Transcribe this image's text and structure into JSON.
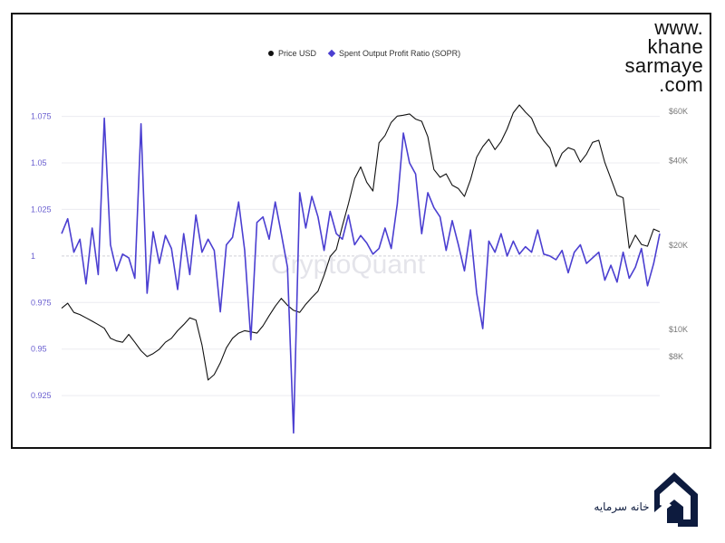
{
  "brand": {
    "url_lines": [
      "www.",
      "khane",
      "sarmaye",
      ".com"
    ],
    "logo_text": "خانه سرمایه"
  },
  "watermark": "CryptoQuant",
  "chart_data": {
    "type": "line",
    "legend": [
      {
        "name": "Price USD",
        "color": "#111111",
        "marker": "circle"
      },
      {
        "name": "Spent Output Profit Ratio (SOPR)",
        "color": "#4b3fd1",
        "marker": "diamond"
      }
    ],
    "left_axis": {
      "ticks": [
        1.075,
        1.05,
        1.025,
        1,
        0.975,
        0.95,
        0.925
      ],
      "labels": [
        "1.075",
        "1.05",
        "1.025",
        "1",
        "0.975",
        "0.95",
        "0.925"
      ],
      "range": [
        0.91,
        1.085
      ],
      "color": "#6a5fd0"
    },
    "right_axis": {
      "ticks": [
        60000,
        40000,
        20000,
        10000,
        8000
      ],
      "labels": [
        "$60K",
        "$40K",
        "$20K",
        "$10K",
        "$8K"
      ],
      "scale": "log",
      "color": "#777777"
    },
    "series": [
      {
        "name": "Price USD",
        "color": "#111111",
        "axis": "right",
        "values": [
          11900,
          12400,
          11500,
          11300,
          11000,
          10700,
          10400,
          10100,
          9300,
          9100,
          9000,
          9600,
          9000,
          8400,
          8000,
          8200,
          8500,
          9000,
          9300,
          9900,
          10400,
          11000,
          10800,
          8800,
          6600,
          6900,
          7600,
          8600,
          9300,
          9700,
          9900,
          9800,
          9700,
          10300,
          11200,
          12100,
          12900,
          12200,
          11700,
          11500,
          12300,
          13000,
          13700,
          15600,
          18200,
          19300,
          23400,
          28100,
          34500,
          38000,
          33500,
          31200,
          46300,
          49200,
          54800,
          57700,
          58100,
          58700,
          56300,
          55300,
          48700,
          37200,
          34900,
          35900,
          32700,
          31800,
          29800,
          34200,
          41200,
          44900,
          47700,
          43800,
          46800,
          51900,
          59300,
          63200,
          59600,
          56700,
          50400,
          47100,
          44400,
          38100,
          42500,
          44500,
          43700,
          39500,
          42200,
          46500,
          47300,
          39400,
          34500,
          30100,
          29500,
          19500,
          21700,
          20100,
          19800,
          22800,
          22300
        ]
      },
      {
        "name": "Spent Output Profit Ratio (SOPR)",
        "color": "#4b3fd1",
        "axis": "left",
        "values": [
          1.012,
          1.02,
          1.002,
          1.009,
          0.985,
          1.015,
          0.99,
          1.074,
          1.006,
          0.992,
          1.001,
          0.999,
          0.988,
          1.071,
          0.98,
          1.013,
          0.996,
          1.011,
          1.004,
          0.982,
          1.012,
          0.99,
          1.022,
          1.002,
          1.009,
          1.003,
          0.97,
          1.006,
          1.01,
          1.029,
          1.003,
          0.955,
          1.018,
          1.021,
          1.009,
          1.029,
          1.012,
          0.994,
          0.905,
          1.034,
          1.015,
          1.032,
          1.021,
          1.003,
          1.024,
          1.012,
          1.009,
          1.022,
          1.006,
          1.011,
          1.007,
          1.001,
          1.004,
          1.015,
          1.004,
          1.028,
          1.066,
          1.05,
          1.044,
          1.012,
          1.034,
          1.026,
          1.021,
          1.003,
          1.019,
          1.006,
          0.992,
          1.014,
          0.98,
          0.961,
          1.008,
          1.002,
          1.012,
          1.0,
          1.008,
          1.001,
          1.005,
          1.002,
          1.014,
          1.001,
          1.0,
          0.998,
          1.003,
          0.991,
          1.002,
          1.006,
          0.996,
          0.999,
          1.002,
          0.987,
          0.995,
          0.986,
          1.002,
          0.988,
          0.994,
          1.004,
          0.984,
          0.996,
          1.012
        ]
      }
    ],
    "grid": true,
    "legend_position": "top-center"
  }
}
